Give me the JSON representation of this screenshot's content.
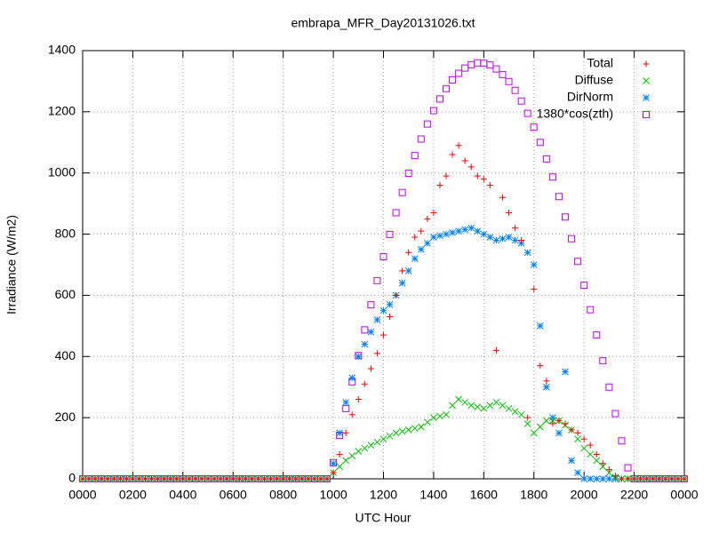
{
  "chart_data": {
    "type": "scatter",
    "title": "embrapa_MFR_Day20131026.txt",
    "xlabel": "UTC Hour",
    "ylabel": "Irradiance (W/m2)",
    "xlim": [
      0,
      24
    ],
    "ylim": [
      0,
      1400
    ],
    "xticks": [
      {
        "value": 0,
        "label": "0000"
      },
      {
        "value": 2,
        "label": "0200"
      },
      {
        "value": 4,
        "label": "0400"
      },
      {
        "value": 6,
        "label": "0600"
      },
      {
        "value": 8,
        "label": "0800"
      },
      {
        "value": 10,
        "label": "1000"
      },
      {
        "value": 12,
        "label": "1200"
      },
      {
        "value": 14,
        "label": "1400"
      },
      {
        "value": 16,
        "label": "1600"
      },
      {
        "value": 18,
        "label": "1800"
      },
      {
        "value": 20,
        "label": "2000"
      },
      {
        "value": 22,
        "label": "2200"
      },
      {
        "value": 24,
        "label": "0000"
      }
    ],
    "yticks": [
      0,
      200,
      400,
      600,
      800,
      1000,
      1200,
      1400
    ],
    "grid": true,
    "legend": "top-right",
    "x": [
      0,
      0.25,
      0.5,
      0.75,
      1,
      1.25,
      1.5,
      1.75,
      2,
      2.25,
      2.5,
      2.75,
      3,
      3.25,
      3.5,
      3.75,
      4,
      4.25,
      4.5,
      4.75,
      5,
      5.25,
      5.5,
      5.75,
      6,
      6.25,
      6.5,
      6.75,
      7,
      7.25,
      7.5,
      7.75,
      8,
      8.25,
      8.5,
      8.75,
      9,
      9.25,
      9.5,
      9.75,
      10,
      10.25,
      10.5,
      10.75,
      11,
      11.25,
      11.5,
      11.75,
      12,
      12.25,
      12.5,
      12.75,
      13,
      13.25,
      13.5,
      13.75,
      14,
      14.25,
      14.5,
      14.75,
      15,
      15.25,
      15.5,
      15.75,
      16,
      16.25,
      16.5,
      16.75,
      17,
      17.25,
      17.5,
      17.75,
      18,
      18.25,
      18.5,
      18.75,
      19,
      19.25,
      19.5,
      19.75,
      20,
      20.25,
      20.5,
      20.75,
      21,
      21.25,
      21.5,
      21.75,
      22,
      22.25,
      22.5,
      22.75,
      23,
      23.25,
      23.5,
      23.75,
      24
    ],
    "series": [
      {
        "name": "Total",
        "color": "#ff0000",
        "marker": "plus",
        "values": [
          0,
          0,
          0,
          0,
          0,
          0,
          0,
          0,
          0,
          0,
          0,
          0,
          0,
          0,
          0,
          0,
          0,
          0,
          0,
          0,
          0,
          0,
          0,
          0,
          0,
          0,
          0,
          0,
          0,
          0,
          0,
          0,
          0,
          0,
          0,
          0,
          0,
          0,
          0,
          0,
          20,
          80,
          150,
          210,
          260,
          310,
          360,
          410,
          470,
          530,
          600,
          680,
          740,
          790,
          810,
          850,
          870,
          960,
          990,
          1060,
          1090,
          1040,
          1020,
          990,
          980,
          960,
          420,
          920,
          870,
          820,
          780,
          200,
          620,
          370,
          320,
          180,
          190,
          180,
          160,
          150,
          130,
          110,
          80,
          50,
          30,
          10,
          0,
          0,
          0,
          0,
          0,
          0,
          0,
          0,
          0,
          0,
          0
        ]
      },
      {
        "name": "Diffuse",
        "color": "#00c000",
        "marker": "cross",
        "values": [
          0,
          0,
          0,
          0,
          0,
          0,
          0,
          0,
          0,
          0,
          0,
          0,
          0,
          0,
          0,
          0,
          0,
          0,
          0,
          0,
          0,
          0,
          0,
          0,
          0,
          0,
          0,
          0,
          0,
          0,
          0,
          0,
          0,
          0,
          0,
          0,
          0,
          0,
          0,
          0,
          20,
          40,
          60,
          75,
          90,
          100,
          110,
          120,
          130,
          140,
          150,
          155,
          160,
          165,
          170,
          185,
          200,
          205,
          210,
          240,
          260,
          250,
          240,
          235,
          230,
          240,
          250,
          240,
          230,
          220,
          210,
          180,
          150,
          170,
          190,
          190,
          190,
          175,
          160,
          130,
          100,
          80,
          60,
          40,
          20,
          5,
          0,
          0,
          0,
          0,
          0,
          0,
          0,
          0,
          0,
          0,
          0
        ]
      },
      {
        "name": "DirNorm",
        "color": "#0080ff",
        "marker": "star",
        "values": [
          0,
          0,
          0,
          0,
          0,
          0,
          0,
          0,
          0,
          0,
          0,
          0,
          0,
          0,
          0,
          0,
          0,
          0,
          0,
          0,
          0,
          0,
          0,
          0,
          0,
          0,
          0,
          0,
          0,
          0,
          0,
          0,
          0,
          0,
          0,
          0,
          0,
          0,
          0,
          0,
          50,
          150,
          250,
          330,
          400,
          440,
          480,
          520,
          550,
          570,
          600,
          640,
          680,
          720,
          750,
          770,
          790,
          795,
          800,
          805,
          810,
          815,
          820,
          810,
          800,
          790,
          780,
          785,
          790,
          780,
          770,
          740,
          700,
          500,
          300,
          200,
          150,
          350,
          60,
          20,
          0,
          0,
          0,
          0,
          0,
          0,
          0,
          0,
          0,
          0,
          0,
          0,
          0,
          0,
          0,
          0,
          0
        ]
      },
      {
        "name": "1380*cos(zth)",
        "color": "#c000ff",
        "marker": "box",
        "values": [
          0,
          0,
          0,
          0,
          0,
          0,
          0,
          0,
          0,
          0,
          0,
          0,
          0,
          0,
          0,
          0,
          0,
          0,
          0,
          0,
          0,
          0,
          0,
          0,
          0,
          0,
          0,
          0,
          0,
          0,
          0,
          0,
          0,
          0,
          0,
          0,
          0,
          0,
          0,
          0,
          53,
          142,
          230,
          317,
          403,
          487,
          569,
          648,
          726,
          799,
          870,
          936,
          999,
          1057,
          1111,
          1160,
          1204,
          1242,
          1276,
          1304,
          1326,
          1343,
          1354,
          1360,
          1359,
          1353,
          1340,
          1322,
          1299,
          1270,
          1235,
          1195,
          1150,
          1100,
          1046,
          987,
          923,
          856,
          785,
          711,
          633,
          553,
          470,
          386,
          300,
          213,
          124,
          36,
          0,
          0,
          0,
          0,
          0,
          0,
          0,
          0,
          0
        ]
      }
    ]
  }
}
